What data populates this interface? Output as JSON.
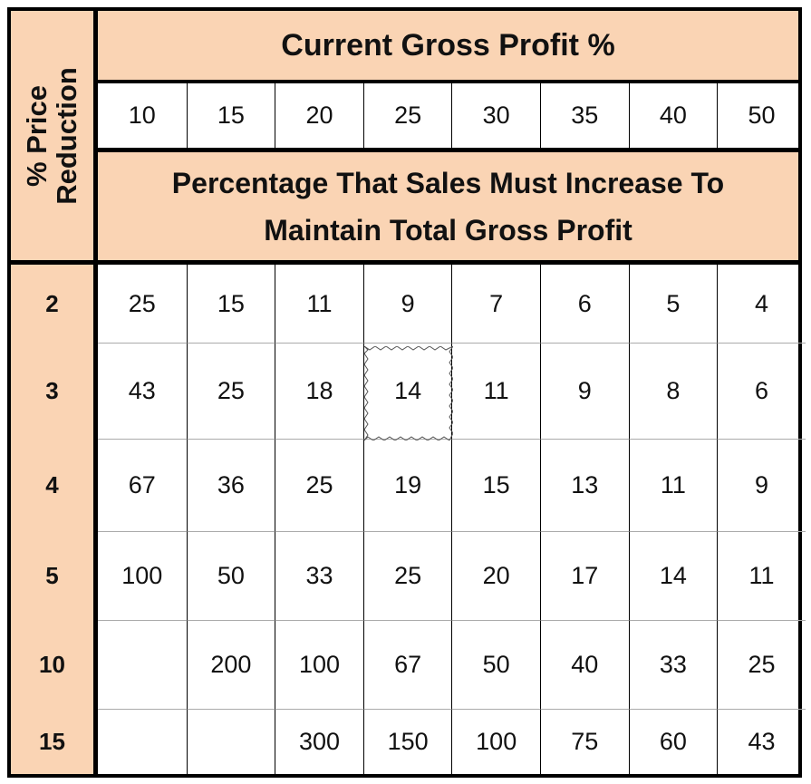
{
  "side_title": "% Price\nReduction",
  "top_title": "Current Gross Profit %",
  "gross_profit": [
    "10",
    "15",
    "20",
    "25",
    "30",
    "35",
    "40",
    "50"
  ],
  "sub_title": "Percentage That Sales Must Increase To\nMaintain Total Gross Profit",
  "price_reductions": [
    "2",
    "3",
    "4",
    "5",
    "10",
    "15"
  ],
  "table": [
    [
      "25",
      "15",
      "11",
      "9",
      "7",
      "6",
      "5",
      "4"
    ],
    [
      "43",
      "25",
      "18",
      "14",
      "11",
      "9",
      "8",
      "6"
    ],
    [
      "67",
      "36",
      "25",
      "19",
      "15",
      "13",
      "11",
      "9"
    ],
    [
      "100",
      "50",
      "33",
      "25",
      "20",
      "17",
      "14",
      "11"
    ],
    [
      "",
      "200",
      "100",
      "67",
      "50",
      "40",
      "33",
      "25"
    ],
    [
      "",
      "",
      "300",
      "150",
      "100",
      "75",
      "60",
      "43"
    ]
  ],
  "colors": {
    "header_fill": "#fad4b4",
    "border": "#000000"
  }
}
